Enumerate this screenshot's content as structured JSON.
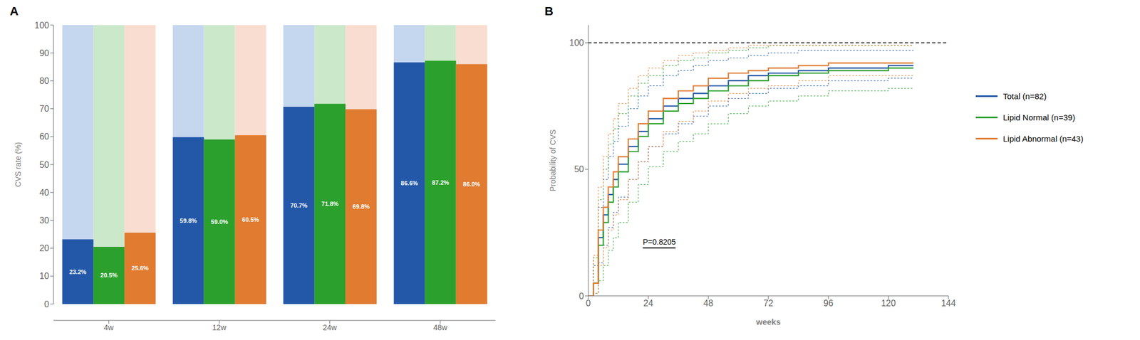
{
  "chart_data": [
    {
      "type": "bar",
      "title": "A",
      "categories": [
        "4w",
        "12w",
        "24w",
        "48w"
      ],
      "series": [
        {
          "name": "Total (n=82)",
          "color": "#2357A8",
          "values": [
            23.2,
            59.8,
            70.7,
            86.6
          ],
          "value_labels": [
            "23.2%",
            "59.8%",
            "70.7%",
            "86.6%"
          ],
          "background": {
            "value": 100,
            "color": "#C5D6EF"
          }
        },
        {
          "name": "Lipid Normal (n=39)",
          "color": "#2BA02C",
          "values": [
            20.5,
            59.0,
            71.8,
            87.2
          ],
          "value_labels": [
            "20.5%",
            "59.0%",
            "71.8%",
            "87.2%"
          ],
          "background": {
            "value": 100,
            "color": "#CBE8CB"
          }
        },
        {
          "name": "Lipid Abnormal (n=43)",
          "color": "#E07B30",
          "values": [
            25.6,
            60.5,
            69.8,
            86.0
          ],
          "value_labels": [
            "25.6%",
            "60.5%",
            "69.8%",
            "86.0%"
          ],
          "background": {
            "value": 100,
            "color": "#F9DDD0"
          }
        }
      ],
      "ylabel": "CVS rate (%)",
      "ylim": [
        0,
        100
      ],
      "yticks": [
        0,
        10,
        20,
        30,
        40,
        50,
        60,
        70,
        80,
        90,
        100
      ],
      "grid": false,
      "data_labels": true,
      "legend": "right"
    },
    {
      "type": "line",
      "title": "B",
      "x": [
        0,
        1,
        2,
        4,
        6,
        8,
        10,
        12,
        16,
        20,
        24,
        30,
        36,
        42,
        48,
        56,
        64,
        72,
        84,
        96,
        108,
        120,
        130
      ],
      "series": [
        {
          "name": "Total (n=82)",
          "color": "#2357A8",
          "line_style": "step",
          "values": [
            0,
            0,
            5,
            23,
            32,
            40,
            46,
            52,
            59,
            65,
            70,
            75,
            78,
            80,
            83,
            85,
            87,
            88,
            89,
            90,
            90,
            91,
            91
          ],
          "ci_upper": [
            0,
            0,
            12,
            35,
            46,
            55,
            61,
            67,
            74,
            79,
            83,
            87,
            89,
            91,
            93,
            94,
            95,
            96,
            97,
            97,
            97,
            97,
            97
          ],
          "ci_lower": [
            0,
            0,
            1,
            13,
            20,
            27,
            33,
            39,
            46,
            53,
            59,
            64,
            68,
            71,
            75,
            78,
            80,
            82,
            83,
            85,
            85,
            86,
            86
          ]
        },
        {
          "name": "Lipid Normal (n=39)",
          "color": "#2BA02C",
          "line_style": "step",
          "values": [
            0,
            0,
            5,
            20,
            29,
            37,
            43,
            49,
            57,
            63,
            68,
            73,
            76,
            78,
            81,
            83,
            85,
            87,
            88,
            89,
            89,
            90,
            90
          ],
          "ci_upper": [
            0,
            0,
            15,
            38,
            50,
            60,
            66,
            72,
            79,
            84,
            87,
            91,
            93,
            94,
            96,
            97,
            98,
            99,
            99,
            99,
            99,
            99,
            99
          ],
          "ci_lower": [
            0,
            0,
            1,
            6,
            12,
            18,
            23,
            29,
            37,
            44,
            51,
            57,
            61,
            64,
            68,
            72,
            75,
            77,
            79,
            81,
            81,
            82,
            82
          ]
        },
        {
          "name": "Lipid Abnormal (n=43)",
          "color": "#E07B30",
          "line_style": "step",
          "values": [
            0,
            0,
            5,
            26,
            35,
            43,
            49,
            55,
            62,
            68,
            73,
            78,
            81,
            83,
            86,
            88,
            89,
            90,
            91,
            92,
            92,
            92,
            92
          ],
          "ci_upper": [
            0,
            0,
            16,
            43,
            55,
            64,
            70,
            76,
            82,
            87,
            90,
            93,
            95,
            96,
            97,
            98,
            99,
            99,
            99,
            99,
            99,
            99,
            99
          ],
          "ci_lower": [
            0,
            0,
            1,
            12,
            19,
            26,
            32,
            38,
            46,
            53,
            59,
            65,
            69,
            73,
            77,
            80,
            82,
            83,
            85,
            87,
            87,
            87,
            87
          ]
        }
      ],
      "xlabel": "weeks",
      "ylabel": "Probability of CVS",
      "xlim": [
        0,
        144
      ],
      "xticks": [
        0,
        24,
        48,
        72,
        96,
        120,
        144
      ],
      "ylim": [
        0,
        107
      ],
      "yticks": [
        0,
        50,
        100
      ],
      "hlines": [
        {
          "y": 100,
          "color": "black",
          "line_style": "dashed"
        }
      ],
      "annotations": [
        {
          "text": "P=0.8205"
        }
      ],
      "grid": false,
      "legend": "right"
    }
  ]
}
